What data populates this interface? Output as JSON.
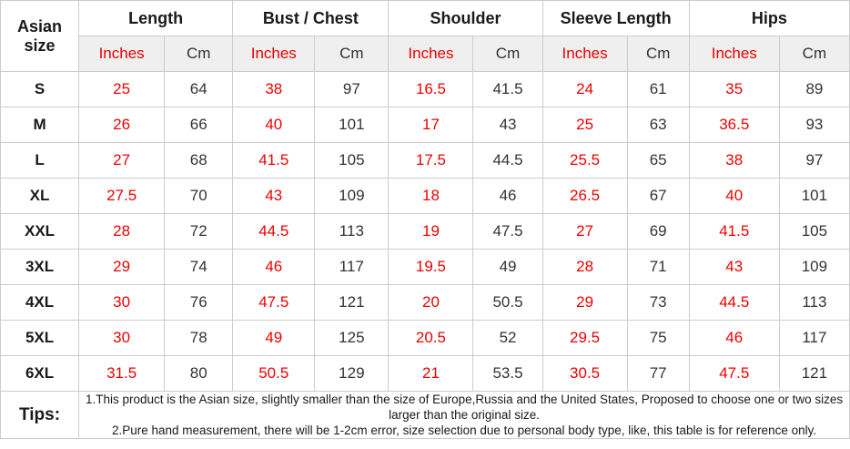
{
  "chart_data": {
    "type": "table",
    "corner_header": "Asian size",
    "column_groups": [
      {
        "label": "Length"
      },
      {
        "label": "Bust / Chest"
      },
      {
        "label": "Shoulder"
      },
      {
        "label": "Sleeve Length"
      },
      {
        "label": "Hips"
      }
    ],
    "units": {
      "inches": "Inches",
      "cm": "Cm"
    },
    "rows": [
      {
        "size": "S",
        "values": [
          25,
          64,
          38,
          97,
          16.5,
          41.5,
          24,
          61,
          35,
          89
        ]
      },
      {
        "size": "M",
        "values": [
          26,
          66,
          40,
          101,
          17,
          43,
          25,
          63,
          36.5,
          93
        ]
      },
      {
        "size": "L",
        "values": [
          27,
          68,
          41.5,
          105,
          17.5,
          44.5,
          25.5,
          65,
          38,
          97
        ]
      },
      {
        "size": "XL",
        "values": [
          27.5,
          70,
          43,
          109,
          18,
          46,
          26.5,
          67,
          40,
          101
        ]
      },
      {
        "size": "XXL",
        "values": [
          28,
          72,
          44.5,
          113,
          19,
          47.5,
          27,
          69,
          41.5,
          105
        ]
      },
      {
        "size": "3XL",
        "values": [
          29,
          74,
          46,
          117,
          19.5,
          49,
          28,
          71,
          43,
          109
        ]
      },
      {
        "size": "4XL",
        "values": [
          30,
          76,
          47.5,
          121,
          20,
          50.5,
          29,
          73,
          44.5,
          113
        ]
      },
      {
        "size": "5XL",
        "values": [
          30,
          78,
          49,
          125,
          20.5,
          52,
          29.5,
          75,
          46,
          117
        ]
      },
      {
        "size": "6XL",
        "values": [
          31.5,
          80,
          50.5,
          129,
          21,
          53.5,
          30.5,
          77,
          47.5,
          121
        ]
      }
    ],
    "tips": {
      "label": "Tips:",
      "lines": [
        "1.This product is the Asian size, slightly smaller than the size of Europe,Russia and the United States, Proposed to choose one or two sizes larger than the original size.",
        "2.Pure hand measurement, there will be 1-2cm error, size selection due to personal body type, like, this table is for reference only."
      ]
    },
    "colors": {
      "accent_red": "#ee0000",
      "text_black": "#1a1a1a",
      "border_gray": "#cccccc",
      "unit_row_bg": "#efefef"
    }
  }
}
